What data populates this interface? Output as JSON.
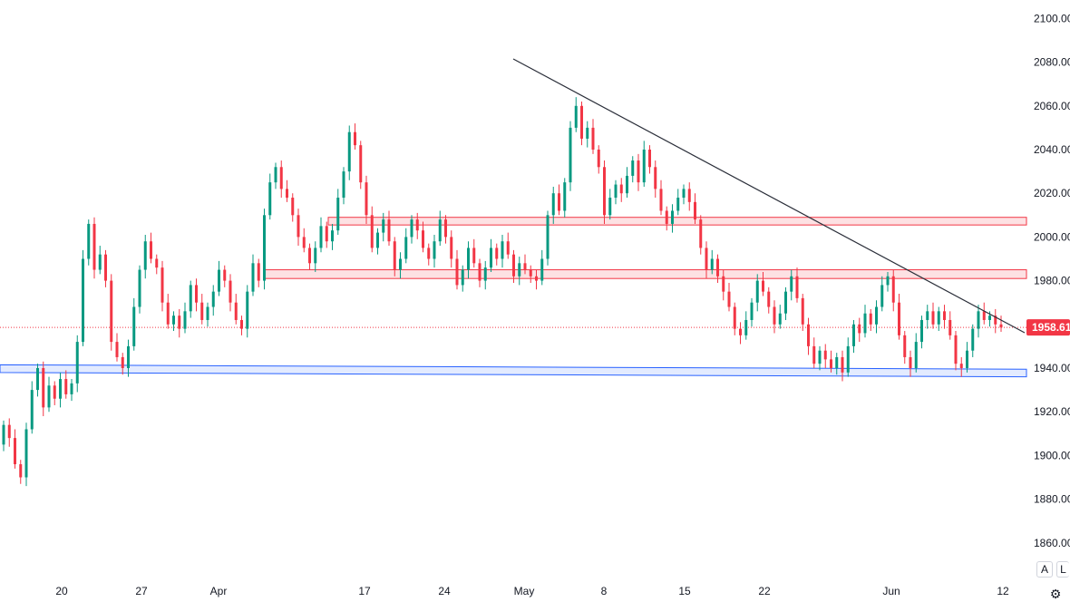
{
  "chart_data": {
    "type": "candlestick",
    "title": "",
    "y_axis": {
      "ticks": [
        "1860.00",
        "1880.00",
        "1900.00",
        "1920.00",
        "1940.00",
        "1960.00",
        "1980.00",
        "2000.00",
        "2020.00",
        "2040.00",
        "2060.00",
        "2080.00",
        "2100.00"
      ],
      "range": [
        1852,
        2106
      ]
    },
    "x_axis": {
      "ticks": [
        "20",
        "27",
        "Apr",
        "17",
        "24",
        "May",
        "8",
        "15",
        "22",
        "Jun",
        "12"
      ]
    },
    "colors": {
      "up": "#089981",
      "down": "#f23645",
      "trendline": "#2a2e39",
      "support": "#2962ff",
      "resistance": "#f23645"
    },
    "last_price": {
      "label": "1958.61",
      "value": 1958.61
    },
    "series": [
      {
        "name": "",
        "points": [
          [
            1905,
            1914
          ],
          [
            1914,
            1908
          ],
          [
            1908,
            1896
          ],
          [
            1896,
            1890
          ],
          [
            1890,
            1912
          ],
          [
            1912,
            1930
          ],
          [
            1930,
            1940
          ],
          [
            1940,
            1922
          ],
          [
            1922,
            1932
          ],
          [
            1932,
            1926
          ],
          [
            1926,
            1935
          ],
          [
            1935,
            1928
          ],
          [
            1928,
            1933
          ],
          [
            1933,
            1952
          ],
          [
            1952,
            1990
          ],
          [
            1990,
            2006
          ],
          [
            2006,
            1985
          ],
          [
            1985,
            1992
          ],
          [
            1992,
            1980
          ],
          [
            1980,
            1952
          ],
          [
            1952,
            1945
          ],
          [
            1945,
            1940
          ],
          [
            1940,
            1950
          ],
          [
            1950,
            1968
          ],
          [
            1968,
            1985
          ],
          [
            1985,
            1998
          ],
          [
            1998,
            1990
          ],
          [
            1990,
            1986
          ],
          [
            1986,
            1970
          ],
          [
            1970,
            1960
          ],
          [
            1960,
            1964
          ],
          [
            1964,
            1958
          ],
          [
            1958,
            1966
          ],
          [
            1966,
            1978
          ],
          [
            1978,
            1970
          ],
          [
            1970,
            1962
          ],
          [
            1962,
            1968
          ],
          [
            1968,
            1975
          ],
          [
            1975,
            1985
          ],
          [
            1985,
            1980
          ],
          [
            1980,
            1970
          ],
          [
            1970,
            1962
          ],
          [
            1962,
            1958
          ],
          [
            1958,
            1975
          ],
          [
            1975,
            1988
          ],
          [
            1988,
            1980
          ],
          [
            1980,
            2010
          ],
          [
            2010,
            2025
          ],
          [
            2025,
            2032
          ],
          [
            2032,
            2022
          ],
          [
            2022,
            2018
          ],
          [
            2018,
            2010
          ],
          [
            2010,
            2000
          ],
          [
            2000,
            1995
          ],
          [
            1995,
            1988
          ],
          [
            1988,
            1995
          ],
          [
            1995,
            2005
          ],
          [
            2005,
            1998
          ],
          [
            1998,
            2003
          ],
          [
            2003,
            2018
          ],
          [
            2018,
            2030
          ],
          [
            2030,
            2048
          ],
          [
            2048,
            2042
          ],
          [
            2042,
            2025
          ],
          [
            2025,
            2010
          ],
          [
            2010,
            1995
          ],
          [
            1995,
            2002
          ],
          [
            2002,
            2008
          ],
          [
            2008,
            1998
          ],
          [
            1998,
            1985
          ],
          [
            1985,
            1990
          ],
          [
            1990,
            2000
          ],
          [
            2000,
            2008
          ],
          [
            2008,
            2003
          ],
          [
            2003,
            1995
          ],
          [
            1995,
            1990
          ],
          [
            1990,
            1998
          ],
          [
            1998,
            2008
          ],
          [
            2008,
            2000
          ],
          [
            2000,
            1990
          ],
          [
            1990,
            1978
          ],
          [
            1978,
            1985
          ],
          [
            1985,
            1995
          ],
          [
            1995,
            1988
          ],
          [
            1988,
            1980
          ],
          [
            1980,
            1986
          ],
          [
            1986,
            1995
          ],
          [
            1995,
            1990
          ],
          [
            1990,
            1998
          ],
          [
            1998,
            1992
          ],
          [
            1992,
            1982
          ],
          [
            1982,
            1988
          ],
          [
            1988,
            1985
          ],
          [
            1985,
            1982
          ],
          [
            1982,
            1980
          ],
          [
            1980,
            1990
          ],
          [
            1990,
            2010
          ],
          [
            2010,
            2020
          ],
          [
            2020,
            2012
          ],
          [
            2012,
            2025
          ],
          [
            2025,
            2050
          ],
          [
            2050,
            2060
          ],
          [
            2060,
            2045
          ],
          [
            2045,
            2050
          ],
          [
            2050,
            2040
          ],
          [
            2040,
            2032
          ],
          [
            2032,
            2010
          ],
          [
            2010,
            2018
          ],
          [
            2018,
            2024
          ],
          [
            2024,
            2020
          ],
          [
            2020,
            2028
          ],
          [
            2028,
            2035
          ],
          [
            2035,
            2025
          ],
          [
            2025,
            2040
          ],
          [
            2040,
            2032
          ],
          [
            2032,
            2022
          ],
          [
            2022,
            2012
          ],
          [
            2012,
            2006
          ],
          [
            2006,
            2012
          ],
          [
            2012,
            2018
          ],
          [
            2018,
            2022
          ],
          [
            2022,
            2016
          ],
          [
            2016,
            2008
          ],
          [
            2008,
            1995
          ],
          [
            1995,
            1985
          ],
          [
            1985,
            1990
          ],
          [
            1990,
            1982
          ],
          [
            1982,
            1975
          ],
          [
            1975,
            1968
          ],
          [
            1968,
            1958
          ],
          [
            1958,
            1955
          ],
          [
            1955,
            1962
          ],
          [
            1962,
            1970
          ],
          [
            1970,
            1980
          ],
          [
            1980,
            1975
          ],
          [
            1975,
            1968
          ],
          [
            1968,
            1960
          ],
          [
            1960,
            1965
          ],
          [
            1965,
            1975
          ],
          [
            1975,
            1982
          ],
          [
            1982,
            1972
          ],
          [
            1972,
            1960
          ],
          [
            1960,
            1950
          ],
          [
            1950,
            1942
          ],
          [
            1942,
            1948
          ],
          [
            1948,
            1944
          ],
          [
            1944,
            1940
          ],
          [
            1940,
            1945
          ],
          [
            1945,
            1938
          ],
          [
            1938,
            1950
          ],
          [
            1950,
            1960
          ],
          [
            1960,
            1956
          ],
          [
            1956,
            1965
          ],
          [
            1965,
            1960
          ],
          [
            1960,
            1968
          ],
          [
            1968,
            1978
          ],
          [
            1978,
            1982
          ],
          [
            1982,
            1970
          ],
          [
            1970,
            1955
          ],
          [
            1955,
            1945
          ],
          [
            1945,
            1940
          ],
          [
            1940,
            1952
          ],
          [
            1952,
            1962
          ],
          [
            1962,
            1966
          ],
          [
            1966,
            1960
          ],
          [
            1960,
            1966
          ],
          [
            1966,
            1962
          ],
          [
            1962,
            1955
          ],
          [
            1955,
            1942
          ],
          [
            1942,
            1940
          ],
          [
            1940,
            1948
          ],
          [
            1948,
            1958
          ],
          [
            1958,
            1966
          ],
          [
            1966,
            1962
          ],
          [
            1962,
            1964
          ],
          [
            1964,
            1960
          ],
          [
            1960,
            1958.61
          ]
        ]
      }
    ]
  },
  "controls": {
    "auto_label": "A",
    "log_label": "L",
    "settings_icon": "gear-icon"
  }
}
